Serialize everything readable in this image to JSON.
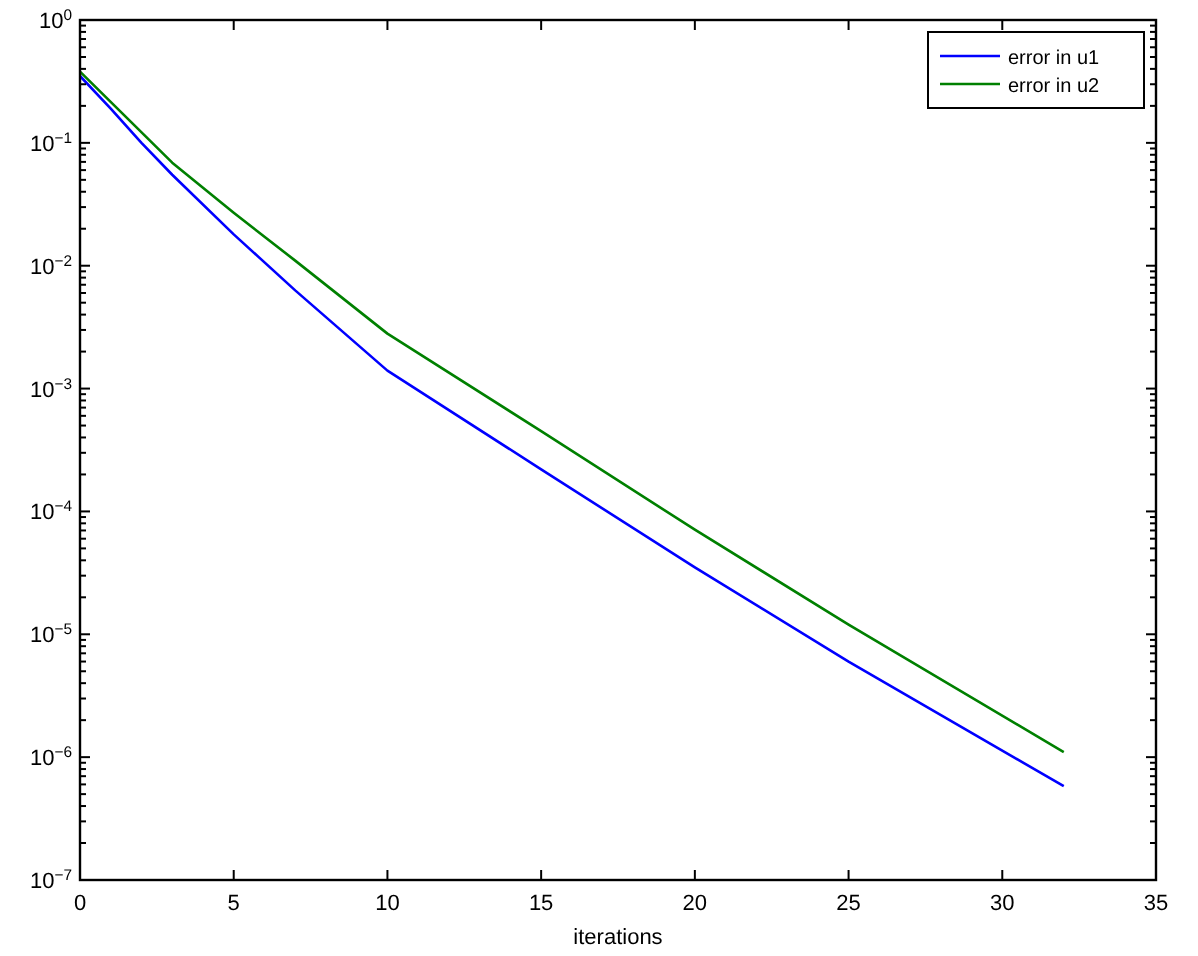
{
  "chart_data": {
    "type": "line",
    "xlabel": "iterations",
    "series": [
      {
        "name": "error in u1",
        "color": "#0000ff",
        "x": [
          0,
          1,
          2,
          3,
          5,
          7,
          10,
          15,
          20,
          25,
          32
        ],
        "values": [
          0.35,
          0.19,
          0.1,
          0.055,
          0.018,
          0.0063,
          0.0014,
          0.00022,
          3.5e-05,
          6e-06,
          5.8e-07
        ]
      },
      {
        "name": "error in u2",
        "color": "#008000",
        "x": [
          0,
          3,
          5,
          7,
          10,
          15,
          20,
          25,
          32
        ],
        "values": [
          0.38,
          0.069,
          0.027,
          0.011,
          0.0028,
          0.00045,
          7.1e-05,
          1.2e-05,
          1.1e-06
        ]
      }
    ],
    "xlim": [
      0,
      35
    ],
    "xticks": [
      0,
      5,
      10,
      15,
      20,
      25,
      30,
      35
    ],
    "ylim": [
      1e-07,
      1
    ],
    "log": "y",
    "yticks": [
      {
        "value": 1e-07,
        "label": "10$^{−7}$"
      },
      {
        "value": 1e-06,
        "label": "10$^{−6}$"
      },
      {
        "value": 1e-05,
        "label": "10$^{−5}$"
      },
      {
        "value": 0.0001,
        "label": "10$^{−4}$"
      },
      {
        "value": 0.001,
        "label": "10$^{−3}$"
      },
      {
        "value": 0.01,
        "label": "10$^{−2}$"
      },
      {
        "value": 0.1,
        "label": "10$^{−1}$"
      },
      {
        "value": 1,
        "label": "10$^{0}$"
      }
    ],
    "legend": "top right",
    "line_style": "solid",
    "grid": false
  }
}
